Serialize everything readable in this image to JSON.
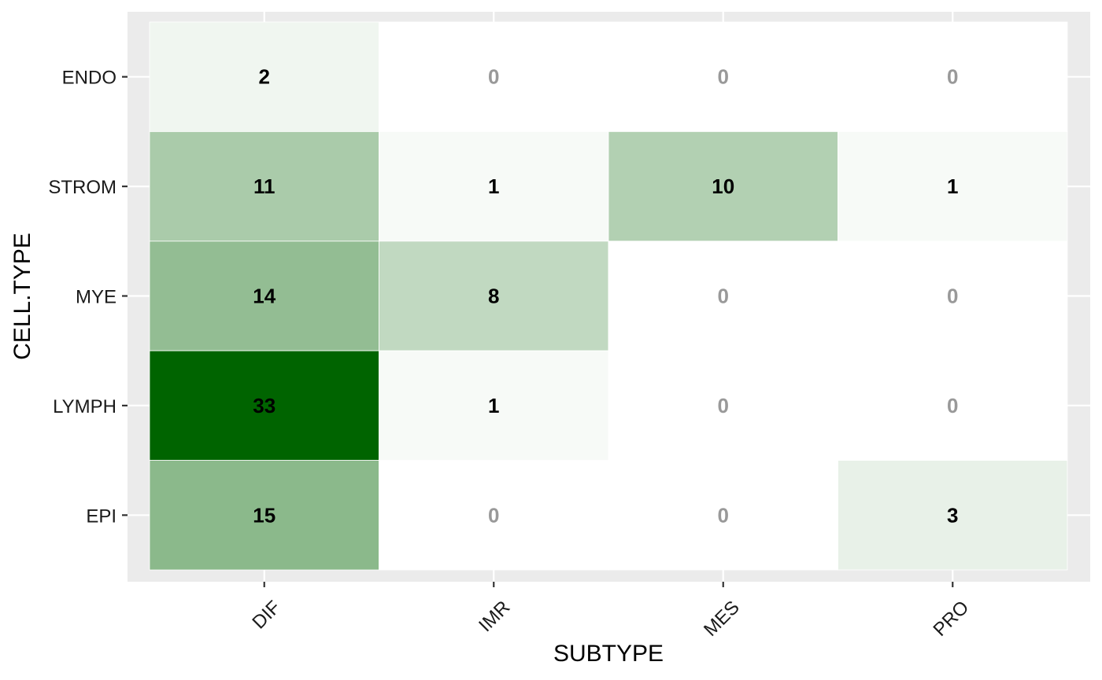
{
  "chart_data": {
    "type": "heatmap",
    "title": "",
    "xlabel": "SUBTYPE",
    "ylabel": "CELL.TYPE",
    "x_categories": [
      "DIF",
      "IMR",
      "MES",
      "PRO"
    ],
    "y_categories": [
      "ENDO",
      "STROM",
      "MYE",
      "LYMPH",
      "EPI"
    ],
    "values": [
      [
        2,
        0,
        0,
        0
      ],
      [
        11,
        1,
        10,
        1
      ],
      [
        14,
        8,
        0,
        0
      ],
      [
        33,
        1,
        0,
        0
      ],
      [
        15,
        0,
        0,
        3
      ]
    ],
    "color_low": "#ffffff",
    "color_high": "#006400",
    "color_range": [
      0,
      33
    ],
    "zero_label_color": "#999999",
    "nonzero_label_color": "#000000",
    "panel_background": "#ebebeb",
    "grid": true,
    "legend": "none",
    "x_tick_rotation_deg": -45
  }
}
